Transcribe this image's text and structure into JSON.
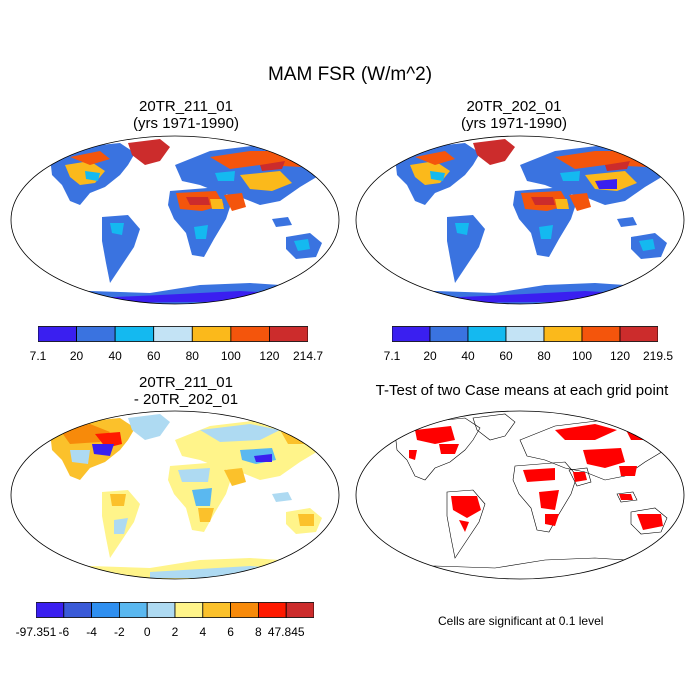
{
  "figure": {
    "title": "MAM FSR (W/m^2)"
  },
  "panels": [
    {
      "title": "20TR_211_01\n(yrs 1971-1990)",
      "colorbar": {
        "labels": [
          "7.1",
          "20",
          "40",
          "60",
          "80",
          "100",
          "120",
          "214.7"
        ],
        "colors": [
          "#3a1ff0",
          "#3a73e0",
          "#14b9f0",
          "#c3e3f5",
          "#fbb91b",
          "#f4550c",
          "#cc2c2c"
        ]
      }
    },
    {
      "title": "20TR_202_01\n(yrs 1971-1990)",
      "colorbar": {
        "labels": [
          "7.1",
          "20",
          "40",
          "60",
          "80",
          "100",
          "120",
          "219.5"
        ],
        "colors": [
          "#3a1ff0",
          "#3a73e0",
          "#14b9f0",
          "#c3e3f5",
          "#fbb91b",
          "#f4550c",
          "#cc2c2c"
        ]
      }
    },
    {
      "title": "20TR_211_01\n- 20TR_202_01",
      "colorbar": {
        "labels": [
          "-97.351",
          "-6",
          "-4",
          "-2",
          "0",
          "2",
          "4",
          "6",
          "8",
          "47.845"
        ],
        "colors": [
          "#3a1ff0",
          "#3a5ad8",
          "#2f8ff0",
          "#5ab8f0",
          "#aedaf2",
          "#fff48a",
          "#fbc12b",
          "#f78a0a",
          "#ff1a00",
          "#cc2c2c"
        ]
      }
    },
    {
      "title": "T-Test of two Case means at each grid point",
      "note": "Cells are significant at 0.1 level",
      "significant_color": "#ff0000"
    }
  ]
}
